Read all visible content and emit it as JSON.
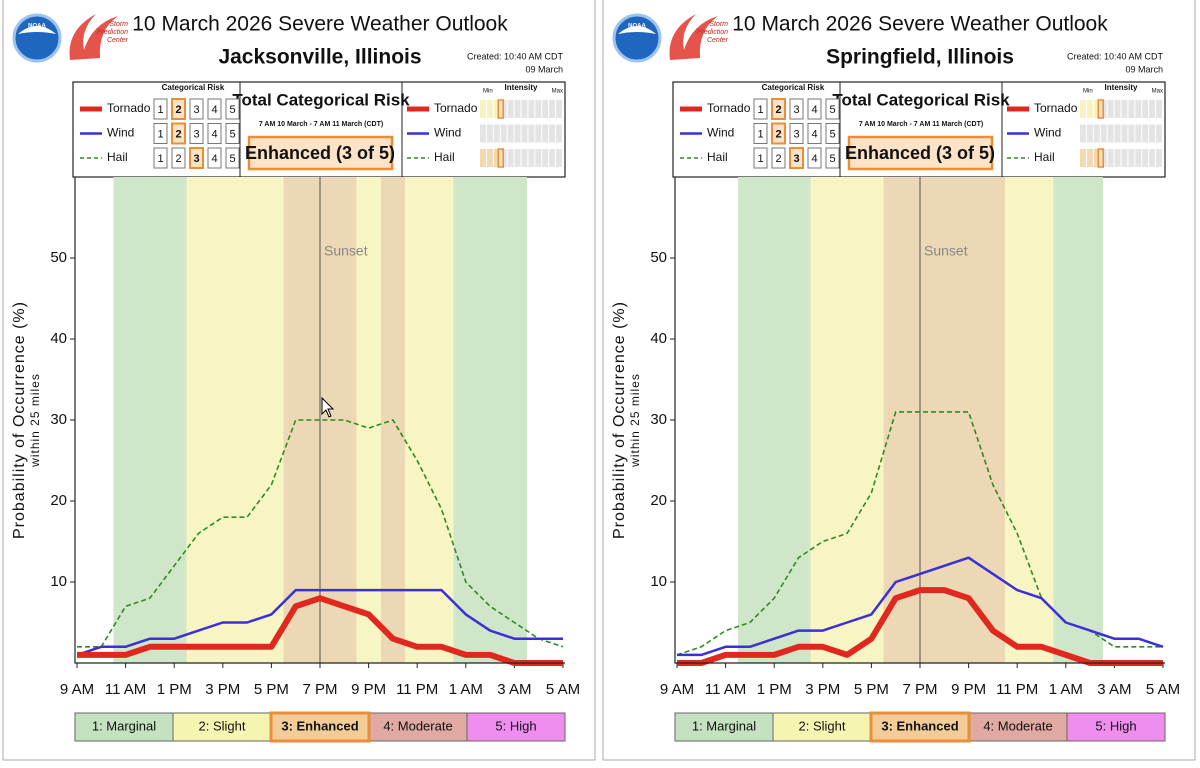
{
  "chart_data": [
    {
      "type": "line",
      "title": "10 March 2026 Severe Weather Outlook",
      "location": "Jacksonville, Illinois",
      "created": "Created: 10:40 AM CDT",
      "created_date": "09 March",
      "noaa_logo": "NOAA",
      "spc_logo": [
        "Storm",
        "Prediction",
        "Center"
      ],
      "categorical_risk_label": "Categorical Risk",
      "risk_levels": [
        1,
        2,
        3,
        4,
        5
      ],
      "total_label": "Total Categorical Risk",
      "total_period": "7 AM 10 March - 7 AM 11 March (CDT)",
      "total_text": "Enhanced (3 of 5)",
      "total_risk": 3,
      "intensity_label": "Intensity",
      "intensity_min": "Min",
      "intensity_max": "Max",
      "intensity_lim": [
        0,
        12
      ],
      "y_label": "Probability of Occurrence (%)",
      "y_sublabel": "within 25 miles",
      "categories": [
        "9 AM",
        null,
        "11 AM",
        null,
        "1 PM",
        null,
        "3 PM",
        null,
        "5 PM",
        null,
        "7 PM",
        null,
        "9 PM",
        null,
        "11 PM",
        null,
        "1 AM",
        null,
        "3 AM",
        null,
        "5 AM"
      ],
      "risk": [
        0,
        0,
        1,
        1,
        1,
        2,
        2,
        2,
        2,
        3,
        3,
        3,
        2,
        3,
        2,
        2,
        1,
        1,
        1,
        0,
        0
      ],
      "risk_band_colors": [
        "#cfe6c9",
        "#f7f5c4",
        "#ecd8b5"
      ],
      "risk_legend": [
        "1: Marginal",
        "2: Slight",
        "3: Enhanced",
        "4: Moderate",
        "5: High"
      ],
      "risk_legend_colors": [
        "#c4e1c0",
        "#f5f5b2",
        "#f4cc98",
        "#e0a9a2",
        "#f08ef0"
      ],
      "annotation": {
        "text": "Sunset",
        "x": "7 PM"
      },
      "ylim": [
        0,
        60
      ],
      "yticks": [
        10,
        20,
        30,
        40,
        50
      ],
      "series": [
        {
          "name": "Tornado",
          "color": "#e0281e",
          "width": 6,
          "dashed": false,
          "risk_category": 2,
          "intensity": 3,
          "intensity_color": "#f8f3c4",
          "values": [
            1,
            1,
            1,
            2,
            2,
            2,
            2,
            2,
            2,
            7,
            8,
            7,
            6,
            3,
            2,
            2,
            1,
            1,
            0,
            0,
            0
          ]
        },
        {
          "name": "Wind",
          "color": "#3a2fd8",
          "width": 2.5,
          "dashed": false,
          "risk_category": 2,
          "intensity": null,
          "intensity_color": "#f8f3c4",
          "values": [
            1,
            2,
            2,
            3,
            3,
            4,
            5,
            5,
            6,
            9,
            9,
            9,
            9,
            9,
            9,
            9,
            6,
            4,
            3,
            3,
            3
          ]
        },
        {
          "name": "Hail",
          "color": "#2e8b22",
          "width": 1.6,
          "dashed": true,
          "risk_category": 3,
          "intensity": 3,
          "intensity_color": "#f1d9b0",
          "values": [
            2,
            2,
            7,
            8,
            12,
            16,
            18,
            18,
            22,
            30,
            30,
            30,
            29,
            30,
            25,
            19,
            10,
            7,
            5,
            3,
            2
          ]
        }
      ]
    },
    {
      "type": "line",
      "title": "10 March 2026 Severe Weather Outlook",
      "location": "Springfield, Illinois",
      "created": "Created: 10:40 AM CDT",
      "created_date": "09 March",
      "noaa_logo": "NOAA",
      "spc_logo": [
        "Storm",
        "Prediction",
        "Center"
      ],
      "categorical_risk_label": "Categorical Risk",
      "risk_levels": [
        1,
        2,
        3,
        4,
        5
      ],
      "total_label": "Total Categorical Risk",
      "total_period": "7 AM 10 March - 7 AM 11 March (CDT)",
      "total_text": "Enhanced (3 of 5)",
      "total_risk": 3,
      "intensity_label": "Intensity",
      "intensity_min": "Min",
      "intensity_max": "Max",
      "intensity_lim": [
        0,
        12
      ],
      "y_label": "Probability of Occurrence (%)",
      "y_sublabel": "within 25 miles",
      "categories": [
        "9 AM",
        null,
        "11 AM",
        null,
        "1 PM",
        null,
        "3 PM",
        null,
        "5 PM",
        null,
        "7 PM",
        null,
        "9 PM",
        null,
        "11 PM",
        null,
        "1 AM",
        null,
        "3 AM",
        null,
        "5 AM"
      ],
      "risk": [
        0,
        0,
        0,
        1,
        1,
        1,
        2,
        2,
        2,
        3,
        3,
        3,
        3,
        3,
        2,
        2,
        1,
        1,
        0,
        0,
        0
      ],
      "risk_band_colors": [
        "#cfe6c9",
        "#f7f5c4",
        "#ecd8b5"
      ],
      "risk_legend": [
        "1: Marginal",
        "2: Slight",
        "3: Enhanced",
        "4: Moderate",
        "5: High"
      ],
      "risk_legend_colors": [
        "#c4e1c0",
        "#f5f5b2",
        "#f4cc98",
        "#e0a9a2",
        "#f08ef0"
      ],
      "annotation": {
        "text": "Sunset",
        "x": "7 PM"
      },
      "ylim": [
        0,
        60
      ],
      "yticks": [
        10,
        20,
        30,
        40,
        50
      ],
      "series": [
        {
          "name": "Tornado",
          "color": "#e0281e",
          "width": 6,
          "dashed": false,
          "risk_category": 2,
          "intensity": 3,
          "intensity_color": "#f8f3c4",
          "values": [
            0,
            0,
            1,
            1,
            1,
            2,
            2,
            1,
            3,
            8,
            9,
            9,
            8,
            4,
            2,
            2,
            1,
            0,
            0,
            0,
            0
          ]
        },
        {
          "name": "Wind",
          "color": "#3a2fd8",
          "width": 2.5,
          "dashed": false,
          "risk_category": 2,
          "intensity": null,
          "intensity_color": "#f8f3c4",
          "values": [
            1,
            1,
            2,
            2,
            3,
            4,
            4,
            5,
            6,
            10,
            11,
            12,
            13,
            11,
            9,
            8,
            5,
            4,
            3,
            3,
            2
          ]
        },
        {
          "name": "Hail",
          "color": "#2e8b22",
          "width": 1.6,
          "dashed": true,
          "risk_category": 3,
          "intensity": 3,
          "intensity_color": "#f1d9b0",
          "values": [
            1,
            2,
            4,
            5,
            8,
            13,
            15,
            16,
            21,
            31,
            31,
            31,
            31,
            22,
            16,
            8,
            5,
            4,
            2,
            2,
            2
          ]
        }
      ]
    }
  ]
}
